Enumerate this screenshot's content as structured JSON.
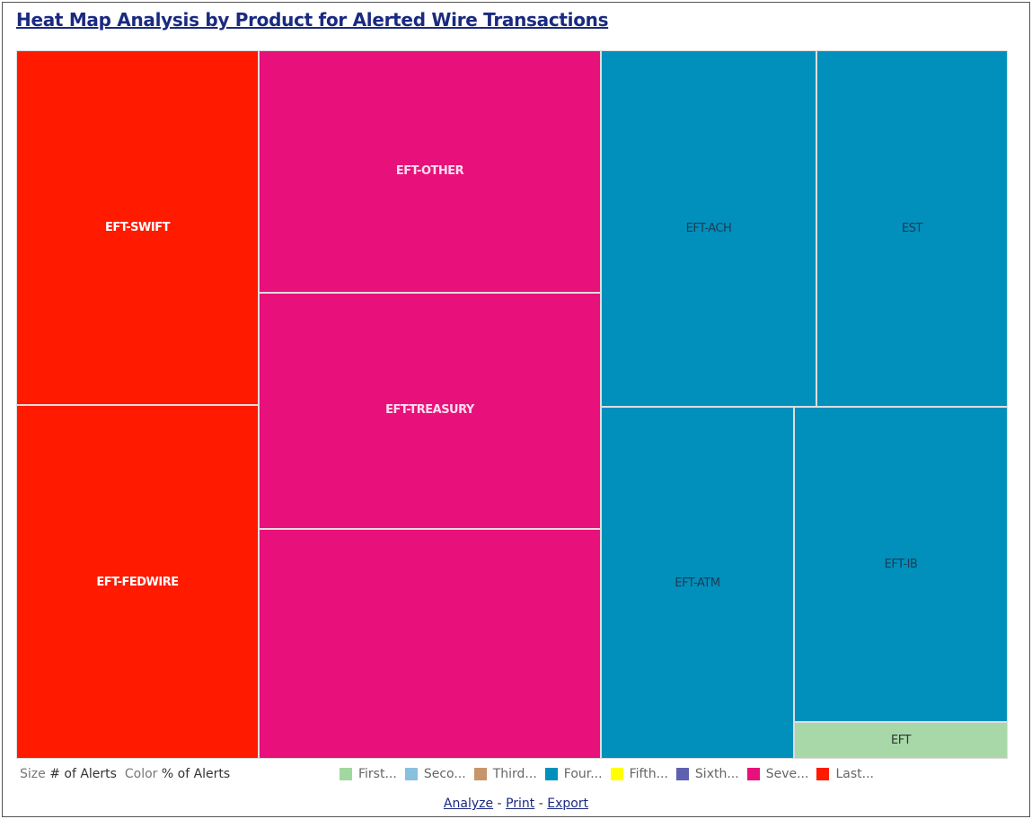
{
  "header": {
    "title": "Heat Map Analysis by Product for Alerted Wire Transactions"
  },
  "tiles": [
    {
      "label": "EFT-SWIFT"
    },
    {
      "label": "EFT-FEDWIRE"
    },
    {
      "label": "EFT-OTHER"
    },
    {
      "label": "EFT-TREASURY"
    },
    {
      "label": "EFT-ACH"
    },
    {
      "label": "EST"
    },
    {
      "label": "EFT-ATM"
    },
    {
      "label": "EFT-IB"
    },
    {
      "label": "EFT"
    }
  ],
  "legend": {
    "size_label": "Size",
    "size_measure": "# of Alerts",
    "color_label": "Color",
    "color_measure": "% of Alerts",
    "items": [
      "First...",
      "Seco...",
      "Third...",
      "Four...",
      "Fifth...",
      "Sixth...",
      "Seve...",
      "Last..."
    ]
  },
  "links": {
    "items": [
      "Analyze",
      "Print",
      "Export"
    ],
    "separators": [
      "-",
      "-"
    ]
  }
}
